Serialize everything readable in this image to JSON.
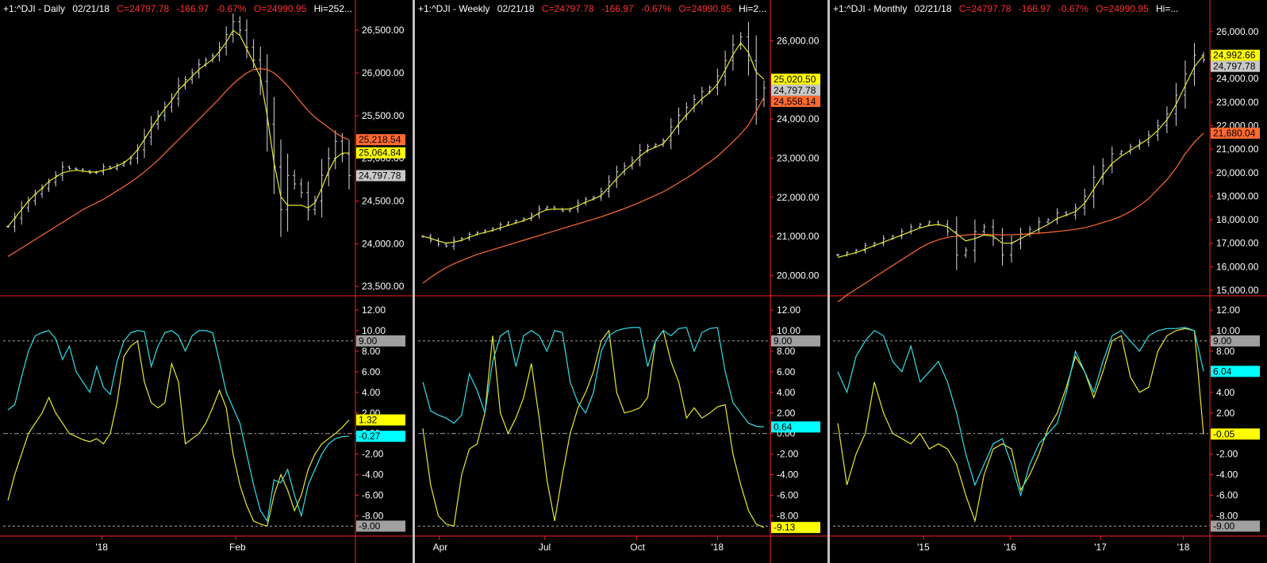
{
  "colors": {
    "price_bar": "#d8d8d8",
    "fast_ma": "#e8e830",
    "slow_ma": "#ff6a30",
    "osc_fast": "#30e0e8",
    "osc_slow": "#e8e830",
    "axis_border": "#ff2020",
    "grid": "#a0a0a0"
  },
  "panels": [
    {
      "name": "daily",
      "header": {
        "symbol": "+1:^DJI - Daily",
        "date": "02/21/18",
        "close": "C=24797.78",
        "change": "-166.97",
        "pct": "-0.67%",
        "open": "O=24990.95",
        "hi": "Hi=252..."
      },
      "x_labels": [
        "'18",
        "Feb"
      ],
      "x_label_pos": [
        0.28,
        0.66
      ],
      "price_ticks": [
        "26,500.00",
        "26,000.00",
        "25,500.00",
        "25,000.00",
        "24,500.00",
        "24,000.00",
        "23,500.00"
      ],
      "osc_ticks": [
        "12.00",
        "10.00",
        "8.00",
        "6.00",
        "4.00",
        "2.00",
        "0.00",
        "-2.00",
        "-4.00",
        "-6.00",
        "-8.00"
      ],
      "price_tags": [
        {
          "text": "25,218.54",
          "value": 25218.54,
          "role": "slow"
        },
        {
          "text": "25,064.84",
          "value": 25064.84,
          "role": "fast"
        },
        {
          "text": "24,797.78",
          "value": 24797.78,
          "role": "last"
        }
      ],
      "osc_tags": [
        {
          "text": "9.00",
          "value": 9.0,
          "role": "ref"
        },
        {
          "text": "1.32",
          "value": 1.32,
          "role": "slow"
        },
        {
          "text": "-0.27",
          "value": -0.27,
          "role": "fast"
        },
        {
          "text": "-9.00",
          "value": -9.0,
          "role": "ref"
        }
      ]
    },
    {
      "name": "weekly",
      "header": {
        "symbol": "+1:^DJI - Weekly",
        "date": "02/21/18",
        "close": "C=24797.78",
        "change": "-166.97",
        "pct": "-0.67%",
        "open": "O=24990.95",
        "hi": "Hi=2..."
      },
      "x_labels": [
        "Apr",
        "Jul",
        "Oct",
        "'18"
      ],
      "x_label_pos": [
        0.06,
        0.36,
        0.62,
        0.85
      ],
      "price_ticks": [
        "26,000.00",
        "25,000.00",
        "24,000.00",
        "23,000.00",
        "22,000.00",
        "21,000.00",
        "20,000.00"
      ],
      "osc_ticks": [
        "12.00",
        "10.00",
        "8.00",
        "6.00",
        "4.00",
        "2.00",
        "0.00",
        "-2.00",
        "-4.00",
        "-6.00",
        "-8.00"
      ],
      "price_tags": [
        {
          "text": "25,020.50",
          "value": 25020.5,
          "role": "fast"
        },
        {
          "text": "24,797.78",
          "value": 24797.78,
          "role": "last"
        },
        {
          "text": "24,558.14",
          "value": 24558.14,
          "role": "slow"
        }
      ],
      "osc_tags": [
        {
          "text": "9.00",
          "value": 9.0,
          "role": "ref"
        },
        {
          "text": "0.64",
          "value": 0.64,
          "role": "fast"
        },
        {
          "text": "-9.13",
          "value": -9.13,
          "role": "slow"
        }
      ]
    },
    {
      "name": "monthly",
      "header": {
        "symbol": "+1:^DJI - Monthly",
        "date": "02/21/18",
        "close": "C=24797.78",
        "change": "-166.97",
        "pct": "-0.67%",
        "open": "O=24990.95",
        "hi": "Hi=..."
      },
      "x_labels": [
        "'15",
        "'16",
        "'17",
        "'18"
      ],
      "x_label_pos": [
        0.24,
        0.47,
        0.71,
        0.93
      ],
      "price_ticks": [
        "26,000.00",
        "25,000.00",
        "24,000.00",
        "23,000.00",
        "22,000.00",
        "21,000.00",
        "20,000.00",
        "19,000.00",
        "18,000.00",
        "17,000.00",
        "16,000.00",
        "15,000.00"
      ],
      "osc_ticks": [
        "12.00",
        "10.00",
        "8.00",
        "6.00",
        "4.00",
        "2.00",
        "0.00",
        "-2.00",
        "-4.00",
        "-6.00",
        "-8.00"
      ],
      "price_tags": [
        {
          "text": "24,992.66",
          "value": 24992.66,
          "role": "fast"
        },
        {
          "text": "24,797.78",
          "value": 24797.78,
          "role": "last"
        },
        {
          "text": "21,680.04",
          "value": 21680.04,
          "role": "slow"
        }
      ],
      "osc_tags": [
        {
          "text": "9.00",
          "value": 9.0,
          "role": "ref"
        },
        {
          "text": "6.04",
          "value": 6.04,
          "role": "fast"
        },
        {
          "text": "-0.05",
          "value": -0.05,
          "role": "slow"
        },
        {
          "text": "-9.00",
          "value": -9.0,
          "role": "ref"
        }
      ]
    }
  ],
  "chart_data": [
    {
      "type": "line",
      "panel": "daily",
      "price_range": [
        23400,
        26650
      ],
      "osc_range": [
        -9.5,
        13
      ],
      "close": [
        24200,
        24300,
        24420,
        24500,
        24580,
        24650,
        24720,
        24800,
        24900,
        24880,
        24870,
        24850,
        24830,
        24840,
        24900,
        24880,
        24920,
        24950,
        25000,
        25100,
        25250,
        25400,
        25500,
        25600,
        25700,
        25850,
        25920,
        26000,
        26100,
        26150,
        26200,
        26300,
        26450,
        26600,
        26500,
        26300,
        26150,
        25900,
        25400,
        24900,
        24400,
        24800,
        24700,
        24600,
        24400,
        24500,
        24800,
        25000,
        25200,
        25050,
        24797
      ],
      "fast_ma": [
        24200,
        24300,
        24400,
        24500,
        24580,
        24650,
        24730,
        24780,
        24830,
        24850,
        24860,
        24850,
        24840,
        24840,
        24860,
        24880,
        24910,
        24950,
        25010,
        25100,
        25220,
        25350,
        25470,
        25580,
        25680,
        25800,
        25880,
        25960,
        26040,
        26100,
        26160,
        26250,
        26360,
        26500,
        26440,
        26280,
        26120,
        25950,
        25500,
        24950,
        24550,
        24450,
        24450,
        24450,
        24420,
        24480,
        24650,
        24850,
        25000,
        25060,
        25064
      ],
      "slow_ma": [
        23850,
        23900,
        23950,
        24000,
        24050,
        24100,
        24150,
        24200,
        24250,
        24300,
        24350,
        24400,
        24440,
        24480,
        24520,
        24570,
        24620,
        24670,
        24720,
        24780,
        24840,
        24910,
        24980,
        25060,
        25140,
        25220,
        25300,
        25380,
        25460,
        25540,
        25620,
        25700,
        25790,
        25870,
        25940,
        26000,
        26040,
        26050,
        26040,
        26000,
        25930,
        25850,
        25750,
        25650,
        25560,
        25480,
        25420,
        25360,
        25300,
        25250,
        25218
      ],
      "osc_fast": [
        2.3,
        2.8,
        5.5,
        8.0,
        9.5,
        9.8,
        10.0,
        9.2,
        7.2,
        8.5,
        6.0,
        5.0,
        4.0,
        6.5,
        4.5,
        3.8,
        7.0,
        9.0,
        9.8,
        10.0,
        9.9,
        6.5,
        8.5,
        9.8,
        10.0,
        9.5,
        8.0,
        9.5,
        10.0,
        10.0,
        9.8,
        7.0,
        4.0,
        2.5,
        1.0,
        -2.0,
        -5.0,
        -7.5,
        -8.5,
        -4.5,
        -4.8,
        -3.5,
        -6.0,
        -8.0,
        -5.0,
        -3.5,
        -2.0,
        -1.0,
        -0.5,
        -0.3,
        -0.27
      ],
      "osc_slow": [
        -6.5,
        -4.0,
        -2.0,
        0.0,
        1.0,
        2.0,
        3.5,
        2.0,
        1.0,
        0.0,
        -0.3,
        -0.6,
        -0.8,
        -0.5,
        -1.0,
        0.0,
        3.0,
        7.5,
        8.5,
        9.0,
        5.0,
        3.0,
        2.5,
        3.0,
        6.8,
        5.0,
        -1.0,
        -0.5,
        0.0,
        1.0,
        2.5,
        4.2,
        2.5,
        -2.0,
        -5.0,
        -7.0,
        -8.5,
        -8.8,
        -9.0,
        -6.0,
        -4.0,
        -5.5,
        -7.5,
        -6.0,
        -3.5,
        -2.0,
        -1.0,
        -0.5,
        0.0,
        0.6,
        1.32
      ]
    },
    {
      "type": "line",
      "panel": "weekly",
      "price_range": [
        19500,
        26600
      ],
      "osc_range": [
        -9.5,
        13
      ],
      "close": [
        21000,
        20900,
        20800,
        20750,
        20900,
        20950,
        21050,
        21100,
        21150,
        21200,
        21300,
        21350,
        21400,
        21450,
        21550,
        21700,
        21750,
        21700,
        21650,
        21700,
        21850,
        21950,
        22000,
        22150,
        22400,
        22650,
        22800,
        22950,
        23200,
        23300,
        23350,
        23450,
        23800,
        24100,
        24300,
        24500,
        24700,
        24800,
        25100,
        25500,
        25900,
        26100,
        25500,
        24500,
        24797
      ],
      "fast_ma": [
        21000,
        20950,
        20880,
        20830,
        20850,
        20900,
        20980,
        21050,
        21100,
        21150,
        21220,
        21280,
        21340,
        21400,
        21480,
        21600,
        21680,
        21700,
        21690,
        21700,
        21780,
        21880,
        21950,
        22050,
        22250,
        22480,
        22680,
        22850,
        23050,
        23200,
        23280,
        23370,
        23600,
        23880,
        24100,
        24320,
        24520,
        24680,
        24900,
        25250,
        25650,
        25950,
        25700,
        25200,
        25020
      ],
      "slow_ma": [
        19800,
        19950,
        20080,
        20200,
        20300,
        20380,
        20460,
        20540,
        20600,
        20660,
        20720,
        20780,
        20840,
        20900,
        20960,
        21020,
        21080,
        21140,
        21200,
        21260,
        21320,
        21380,
        21440,
        21500,
        21570,
        21640,
        21710,
        21790,
        21870,
        21960,
        22050,
        22140,
        22250,
        22370,
        22490,
        22620,
        22760,
        22900,
        23050,
        23230,
        23420,
        23620,
        23850,
        24200,
        24558
      ],
      "osc_fast": [
        5.0,
        2.2,
        1.8,
        1.5,
        1.0,
        1.8,
        5.8,
        4.2,
        2.0,
        7.0,
        9.5,
        10.0,
        6.5,
        9.5,
        10.0,
        9.5,
        8.0,
        10.0,
        9.8,
        5.0,
        3.0,
        2.0,
        4.0,
        8.0,
        9.5,
        10.0,
        10.2,
        10.3,
        10.3,
        6.5,
        9.0,
        10.0,
        9.5,
        10.2,
        10.3,
        8.0,
        9.8,
        10.2,
        10.3,
        6.0,
        3.0,
        2.0,
        1.0,
        0.7,
        0.64
      ],
      "osc_slow": [
        0.5,
        -5.0,
        -8.0,
        -8.8,
        -9.0,
        -4.0,
        -1.5,
        -1.0,
        2.0,
        9.5,
        2.0,
        0.0,
        1.5,
        3.5,
        6.8,
        1.5,
        -4.5,
        -8.5,
        -4.0,
        0.0,
        2.5,
        4.0,
        6.0,
        9.0,
        10.0,
        4.0,
        2.0,
        2.2,
        2.5,
        3.5,
        9.0,
        10.0,
        7.0,
        5.0,
        1.5,
        2.5,
        1.5,
        2.0,
        2.6,
        2.8,
        -2.0,
        -5.0,
        -7.5,
        -8.8,
        -9.13
      ]
    },
    {
      "type": "line",
      "panel": "monthly",
      "price_range": [
        14800,
        26600
      ],
      "osc_range": [
        -9.5,
        13
      ],
      "close": [
        16500,
        16600,
        16700,
        16900,
        17000,
        17200,
        17300,
        17500,
        17700,
        17800,
        17900,
        17800,
        17500,
        16500,
        16700,
        17500,
        17700,
        17200,
        16500,
        17000,
        17400,
        17600,
        17900,
        18000,
        18300,
        18200,
        18500,
        19000,
        19800,
        20300,
        20800,
        20900,
        21100,
        21300,
        21600,
        22000,
        22500,
        23300,
        24200,
        25000,
        24797
      ],
      "fast_ma": [
        16400,
        16500,
        16600,
        16750,
        16900,
        17050,
        17200,
        17350,
        17500,
        17650,
        17750,
        17800,
        17700,
        17400,
        17100,
        17200,
        17350,
        17300,
        17000,
        17000,
        17200,
        17400,
        17600,
        17800,
        18050,
        18200,
        18350,
        18700,
        19300,
        19900,
        20400,
        20700,
        20950,
        21200,
        21450,
        21800,
        22250,
        22900,
        23700,
        24500,
        24992
      ],
      "slow_ma": [
        14500,
        14800,
        15050,
        15300,
        15550,
        15800,
        16050,
        16300,
        16550,
        16800,
        17000,
        17150,
        17250,
        17300,
        17350,
        17380,
        17380,
        17370,
        17350,
        17360,
        17380,
        17400,
        17430,
        17460,
        17500,
        17540,
        17590,
        17660,
        17760,
        17880,
        18000,
        18150,
        18350,
        18600,
        18900,
        19300,
        19700,
        20200,
        20800,
        21300,
        21680
      ],
      "osc_fast": [
        6.0,
        4.0,
        7.5,
        9.0,
        10.0,
        9.5,
        7.0,
        6.0,
        8.5,
        5.0,
        6.0,
        7.0,
        5.0,
        2.0,
        -2.0,
        -5.0,
        -3.0,
        -1.0,
        -0.5,
        -3.0,
        -6.0,
        -3.0,
        -1.0,
        0.0,
        1.0,
        4.0,
        8.0,
        6.0,
        4.0,
        7.0,
        9.5,
        10.0,
        9.0,
        8.0,
        9.5,
        10.0,
        10.2,
        10.2,
        10.3,
        10.0,
        6.04
      ],
      "osc_slow": [
        1.0,
        -5.0,
        -2.0,
        0.0,
        5.0,
        2.0,
        0.0,
        -0.5,
        -1.0,
        0.0,
        -1.5,
        -1.0,
        -1.5,
        -3.0,
        -6.0,
        -8.5,
        -4.0,
        -1.5,
        -1.0,
        -1.5,
        -5.5,
        -4.0,
        -2.0,
        0.5,
        2.0,
        4.5,
        7.5,
        6.0,
        3.5,
        6.0,
        9.0,
        9.5,
        5.5,
        4.0,
        4.5,
        8.0,
        9.5,
        10.0,
        10.2,
        10.0,
        -0.05
      ]
    }
  ]
}
